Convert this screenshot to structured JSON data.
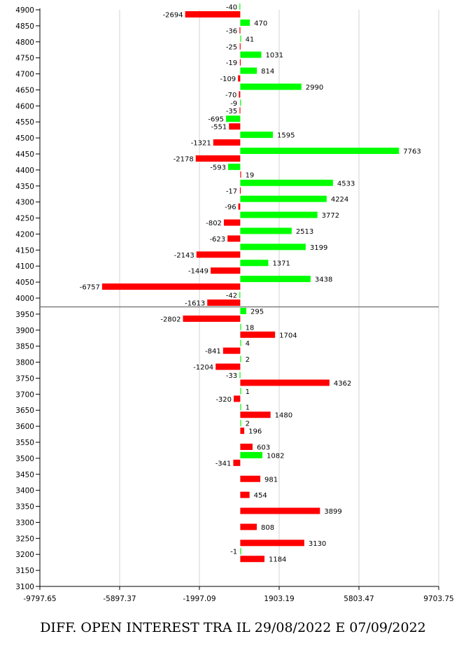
{
  "caption": "DIFF. OPEN INTEREST TRA IL 29/08/2022 E 07/09/2022",
  "colors": {
    "call": "#00ff00",
    "put": "#ff0000",
    "grid": "#d3d3d3",
    "price_line": "#808080"
  },
  "chart_data": {
    "type": "bar",
    "orientation": "horizontal",
    "title": "DIFF. OPEN INTEREST TRA IL 29/08/2022 E 07/09/2022",
    "y_ticks": [
      4900,
      4850,
      4800,
      4750,
      4700,
      4650,
      4600,
      4550,
      4500,
      4450,
      4400,
      4350,
      4300,
      4250,
      4200,
      4150,
      4100,
      4050,
      4000,
      3950,
      3900,
      3850,
      3800,
      3750,
      3700,
      3650,
      3600,
      3550,
      3500,
      3450,
      3400,
      3350,
      3300,
      3250,
      3200,
      3150,
      3100
    ],
    "x_ticks": [
      "-9797.65",
      "-5897.37",
      "-1997.09",
      "1903.19",
      "5803.47",
      "9703.75"
    ],
    "xlim": [
      -9797.65,
      9703.75
    ],
    "grid": "vertical",
    "reference_strike": 3975,
    "series": [
      {
        "color": "green",
        "points": [
          {
            "strike": 4900,
            "value": -40
          },
          {
            "strike": 4850,
            "value": 470
          },
          {
            "strike": 4800,
            "value": 41
          },
          {
            "strike": 4750,
            "value": 1031
          },
          {
            "strike": 4700,
            "value": 814
          },
          {
            "strike": 4650,
            "value": 2990
          },
          {
            "strike": 4600,
            "value": -9
          },
          {
            "strike": 4550,
            "value": -695
          },
          {
            "strike": 4500,
            "value": 1595
          },
          {
            "strike": 4450,
            "value": 7763
          },
          {
            "strike": 4400,
            "value": -593
          },
          {
            "strike": 4350,
            "value": 4533
          },
          {
            "strike": 4300,
            "value": 4224
          },
          {
            "strike": 4250,
            "value": 3772
          },
          {
            "strike": 4200,
            "value": 2513
          },
          {
            "strike": 4150,
            "value": 3199
          },
          {
            "strike": 4100,
            "value": 1371
          },
          {
            "strike": 4050,
            "value": 3438
          },
          {
            "strike": 4000,
            "value": -42
          },
          {
            "strike": 3950,
            "value": 295
          },
          {
            "strike": 3900,
            "value": 18
          },
          {
            "strike": 3850,
            "value": 4
          },
          {
            "strike": 3800,
            "value": 2
          },
          {
            "strike": 3750,
            "value": -33
          },
          {
            "strike": 3700,
            "value": 1
          },
          {
            "strike": 3650,
            "value": 1
          },
          {
            "strike": 3600,
            "value": 2
          },
          {
            "strike": 3500,
            "value": 1082
          },
          {
            "strike": 3200,
            "value": -1
          }
        ]
      },
      {
        "color": "red",
        "points": [
          {
            "strike": 4900,
            "value": -2694
          },
          {
            "strike": 4850,
            "value": -36
          },
          {
            "strike": 4800,
            "value": -25
          },
          {
            "strike": 4750,
            "value": -19
          },
          {
            "strike": 4700,
            "value": -109
          },
          {
            "strike": 4650,
            "value": -70
          },
          {
            "strike": 4600,
            "value": -35
          },
          {
            "strike": 4550,
            "value": -551
          },
          {
            "strike": 4500,
            "value": -1321
          },
          {
            "strike": 4450,
            "value": -2178
          },
          {
            "strike": 4400,
            "value": 19
          },
          {
            "strike": 4350,
            "value": -17
          },
          {
            "strike": 4300,
            "value": -96
          },
          {
            "strike": 4250,
            "value": -802
          },
          {
            "strike": 4200,
            "value": -623
          },
          {
            "strike": 4150,
            "value": -2143
          },
          {
            "strike": 4100,
            "value": -1449
          },
          {
            "strike": 4050,
            "value": -6757
          },
          {
            "strike": 4000,
            "value": -1613
          },
          {
            "strike": 3950,
            "value": -2802
          },
          {
            "strike": 3900,
            "value": 1704
          },
          {
            "strike": 3850,
            "value": -841
          },
          {
            "strike": 3800,
            "value": -1204
          },
          {
            "strike": 3750,
            "value": 4362
          },
          {
            "strike": 3700,
            "value": -320
          },
          {
            "strike": 3650,
            "value": 1480
          },
          {
            "strike": 3600,
            "value": 196
          },
          {
            "strike": 3550,
            "value": 603
          },
          {
            "strike": 3500,
            "value": -341
          },
          {
            "strike": 3450,
            "value": 981
          },
          {
            "strike": 3400,
            "value": 454
          },
          {
            "strike": 3350,
            "value": 3899
          },
          {
            "strike": 3300,
            "value": 808
          },
          {
            "strike": 3250,
            "value": 3130
          },
          {
            "strike": 3200,
            "value": 1184
          }
        ]
      }
    ]
  }
}
